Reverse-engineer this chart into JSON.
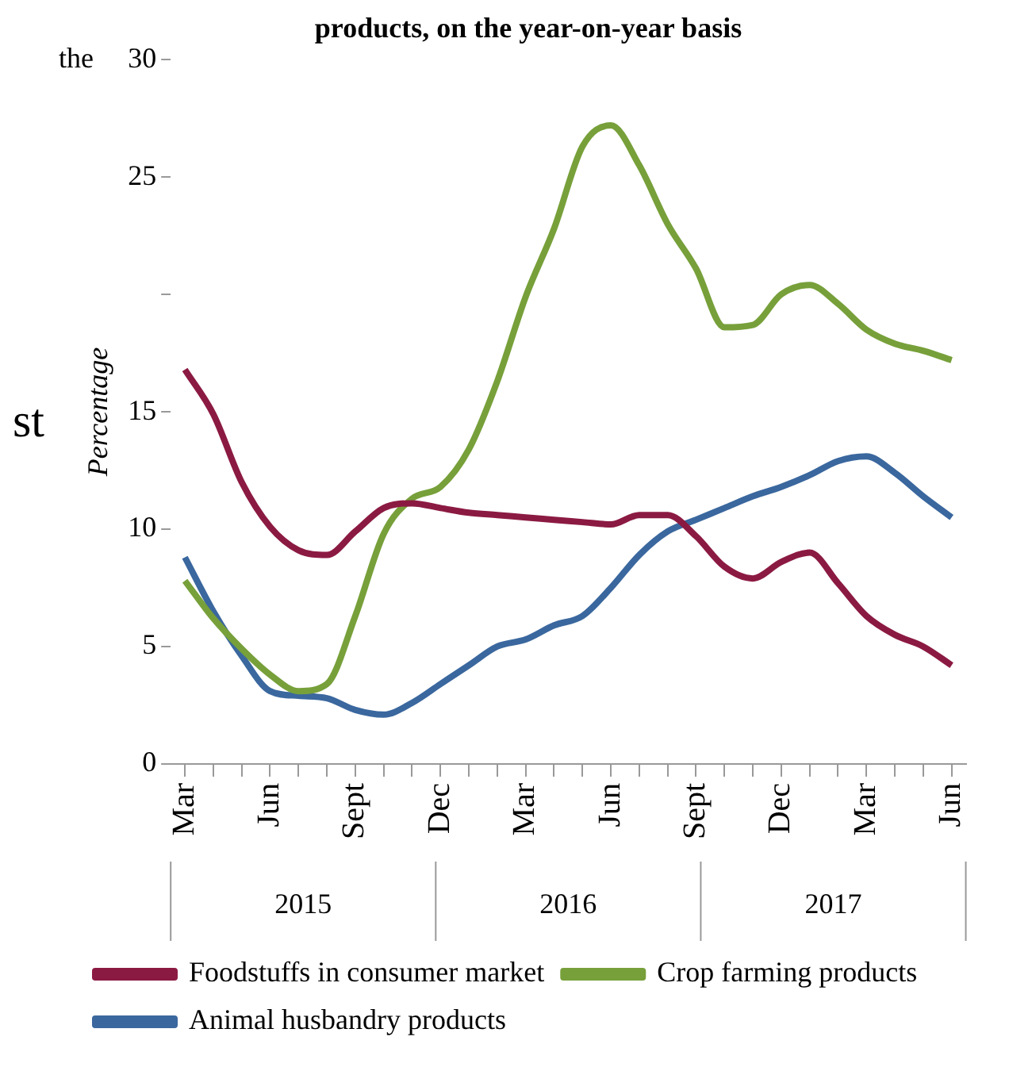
{
  "chart_data": {
    "type": "line",
    "title": "products, on the year-on-year basis",
    "ylabel": "Percentage",
    "categories": [
      "Mar",
      null,
      null,
      "Jun",
      null,
      null,
      "Sept",
      null,
      null,
      "Dec",
      null,
      null,
      "Mar",
      null,
      null,
      "Jun",
      null,
      null,
      "Sept",
      null,
      null,
      "Dec",
      null,
      null,
      "Mar",
      null,
      null,
      "Jun"
    ],
    "series": [
      {
        "name": "Foodstuffs in consumer market",
        "color": "#8b1a42",
        "values": [
          16.8,
          14.9,
          12.0,
          10.1,
          9.1,
          8.9,
          9.9,
          10.9,
          11.1,
          10.9,
          10.7,
          10.6,
          10.5,
          10.4,
          10.3,
          10.2,
          10.6,
          10.6,
          9.7,
          8.4,
          7.9,
          8.6,
          9.0,
          7.7,
          6.3,
          5.5,
          5.0,
          4.2
        ]
      },
      {
        "name": "Crop farming products",
        "color": "#77a03a",
        "values": [
          7.8,
          6.2,
          4.9,
          3.8,
          3.1,
          3.4,
          6.3,
          9.8,
          11.3,
          11.8,
          13.4,
          16.3,
          19.9,
          22.8,
          26.3,
          27.2,
          25.5,
          23.0,
          21.1,
          18.6,
          18.7,
          20.0,
          20.4,
          19.6,
          18.5,
          17.9,
          17.6,
          17.2
        ]
      },
      {
        "name": "Animal husbandry products",
        "color": "#3a679e",
        "values": [
          8.8,
          6.5,
          4.6,
          3.1,
          2.9,
          2.8,
          2.3,
          2.1,
          2.6,
          3.4,
          4.2,
          5.0,
          5.3,
          5.9,
          6.3,
          7.5,
          8.9,
          9.9,
          10.4,
          10.9,
          11.4,
          11.8,
          12.3,
          12.9,
          13.1,
          12.4,
          11.4,
          10.5
        ]
      }
    ],
    "ylim": [
      0,
      30
    ],
    "yticks": [
      0,
      5,
      10,
      15,
      {
        "value": 20,
        "label": null
      },
      25,
      30
    ],
    "annotations": [
      "the",
      "st",
      "2015",
      "2016",
      "2017"
    ],
    "grid": false,
    "legend": "bottom",
    "marker": "none",
    "line_style": "solid"
  }
}
